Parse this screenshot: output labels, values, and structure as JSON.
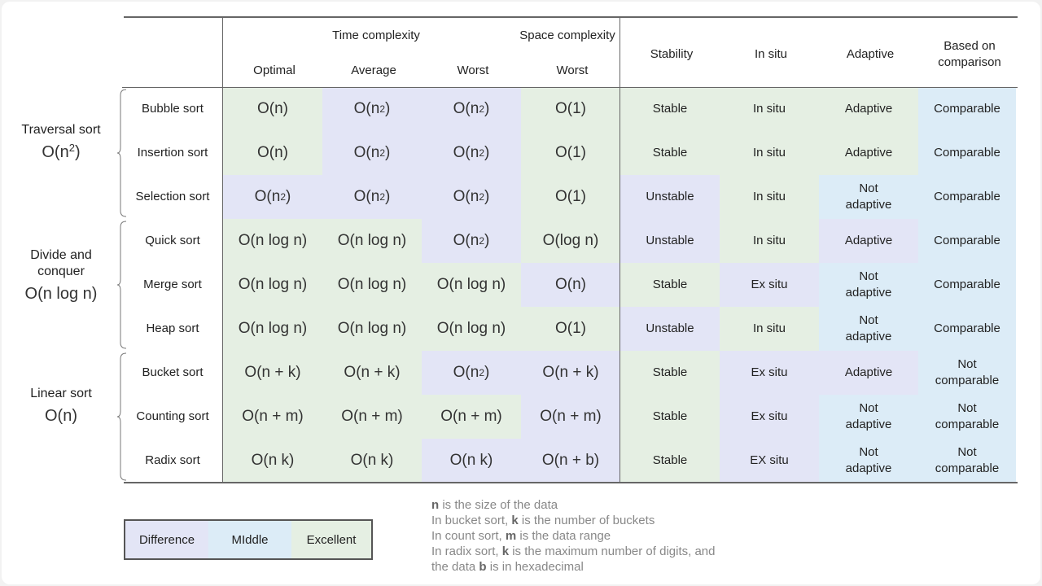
{
  "colors": {
    "Difference": "#e3e5f6",
    "Middle": "#dcecf7",
    "Excellent": "#e5efe3"
  },
  "header": {
    "time_complexity": "Time complexity",
    "space_complexity": "Space complexity",
    "optimal": "Optimal",
    "average": "Average",
    "worst": "Worst",
    "space_worst": "Worst",
    "stability": "Stability",
    "in_situ": "In situ",
    "adaptive": "Adaptive",
    "based_on_comparison": "Based on comparison"
  },
  "groups": [
    {
      "name": "Traversal sort",
      "complexity": "O(n<sup>2</sup>)"
    },
    {
      "name": "Divide and conquer",
      "complexity": "O(n log n)"
    },
    {
      "name": "Linear sort",
      "complexity": "O(n)"
    }
  ],
  "rows": [
    {
      "name": "Bubble sort",
      "cells": [
        {
          "text": "O(n)",
          "c": "Excellent"
        },
        {
          "text": "O(n<sup>2</sup>)",
          "c": "Difference"
        },
        {
          "text": "O(n<sup>2</sup>)",
          "c": "Difference"
        },
        {
          "text": "O(1)",
          "c": "Excellent"
        },
        {
          "text": "Stable",
          "c": "Excellent"
        },
        {
          "text": "In situ",
          "c": "Excellent"
        },
        {
          "text": "Adaptive",
          "c": "Excellent"
        },
        {
          "text": "Comparable",
          "c": "Middle"
        }
      ]
    },
    {
      "name": "Insertion sort",
      "cells": [
        {
          "text": "O(n)",
          "c": "Excellent"
        },
        {
          "text": "O(n<sup>2</sup>)",
          "c": "Difference"
        },
        {
          "text": "O(n<sup>2</sup>)",
          "c": "Difference"
        },
        {
          "text": "O(1)",
          "c": "Excellent"
        },
        {
          "text": "Stable",
          "c": "Excellent"
        },
        {
          "text": "In situ",
          "c": "Excellent"
        },
        {
          "text": "Adaptive",
          "c": "Excellent"
        },
        {
          "text": "Comparable",
          "c": "Middle"
        }
      ]
    },
    {
      "name": "Selection sort",
      "cells": [
        {
          "text": "O(n<sup>2</sup>)",
          "c": "Difference"
        },
        {
          "text": "O(n<sup>2</sup>)",
          "c": "Difference"
        },
        {
          "text": "O(n<sup>2</sup>)",
          "c": "Difference"
        },
        {
          "text": "O(1)",
          "c": "Excellent"
        },
        {
          "text": "Unstable",
          "c": "Difference"
        },
        {
          "text": "In situ",
          "c": "Excellent"
        },
        {
          "text": "Not adaptive",
          "c": "Middle"
        },
        {
          "text": "Comparable",
          "c": "Middle"
        }
      ]
    },
    {
      "name": "Quick sort",
      "cells": [
        {
          "text": "O(n log n)",
          "c": "Excellent"
        },
        {
          "text": "O(n log n)",
          "c": "Excellent"
        },
        {
          "text": "O(n<sup>2</sup>)",
          "c": "Difference"
        },
        {
          "text": "O(log n)",
          "c": "Excellent"
        },
        {
          "text": "Unstable",
          "c": "Difference"
        },
        {
          "text": "In situ",
          "c": "Excellent"
        },
        {
          "text": "Adaptive",
          "c": "Difference"
        },
        {
          "text": "Comparable",
          "c": "Middle"
        }
      ]
    },
    {
      "name": "Merge sort",
      "cells": [
        {
          "text": "O(n log n)",
          "c": "Excellent"
        },
        {
          "text": "O(n log n)",
          "c": "Excellent"
        },
        {
          "text": "O(n log n)",
          "c": "Excellent"
        },
        {
          "text": "O(n)",
          "c": "Difference"
        },
        {
          "text": "Stable",
          "c": "Excellent"
        },
        {
          "text": "Ex situ",
          "c": "Difference"
        },
        {
          "text": "Not adaptive",
          "c": "Middle"
        },
        {
          "text": "Comparable",
          "c": "Middle"
        }
      ]
    },
    {
      "name": "Heap sort",
      "cells": [
        {
          "text": "O(n log n)",
          "c": "Excellent"
        },
        {
          "text": "O(n log n)",
          "c": "Excellent"
        },
        {
          "text": "O(n log n)",
          "c": "Excellent"
        },
        {
          "text": "O(1)",
          "c": "Excellent"
        },
        {
          "text": "Unstable",
          "c": "Difference"
        },
        {
          "text": "In situ",
          "c": "Excellent"
        },
        {
          "text": "Not adaptive",
          "c": "Middle"
        },
        {
          "text": "Comparable",
          "c": "Middle"
        }
      ]
    },
    {
      "name": "Bucket sort",
      "cells": [
        {
          "text": "O(n + k)",
          "c": "Excellent"
        },
        {
          "text": "O(n + k)",
          "c": "Excellent"
        },
        {
          "text": "O(n<sup>2</sup>)",
          "c": "Difference"
        },
        {
          "text": "O(n + k)",
          "c": "Difference"
        },
        {
          "text": "Stable",
          "c": "Excellent"
        },
        {
          "text": "Ex situ",
          "c": "Difference"
        },
        {
          "text": "Adaptive",
          "c": "Difference"
        },
        {
          "text": "Not comparable",
          "c": "Middle"
        }
      ]
    },
    {
      "name": "Counting sort",
      "cells": [
        {
          "text": "O(n + m)",
          "c": "Excellent"
        },
        {
          "text": "O(n + m)",
          "c": "Excellent"
        },
        {
          "text": "O(n + m)",
          "c": "Excellent"
        },
        {
          "text": "O(n + m)",
          "c": "Difference"
        },
        {
          "text": "Stable",
          "c": "Excellent"
        },
        {
          "text": "Ex situ",
          "c": "Difference"
        },
        {
          "text": "Not adaptive",
          "c": "Middle"
        },
        {
          "text": "Not comparable",
          "c": "Middle"
        }
      ]
    },
    {
      "name": "Radix sort",
      "cells": [
        {
          "text": "O(n k)",
          "c": "Excellent"
        },
        {
          "text": "O(n k)",
          "c": "Excellent"
        },
        {
          "text": "O(n k)",
          "c": "Difference"
        },
        {
          "text": "O(n + b)",
          "c": "Difference"
        },
        {
          "text": "Stable",
          "c": "Excellent"
        },
        {
          "text": "EX situ",
          "c": "Difference"
        },
        {
          "text": "Not adaptive",
          "c": "Middle"
        },
        {
          "text": "Not comparable",
          "c": "Middle"
        }
      ]
    }
  ],
  "legend": {
    "difference": "Difference",
    "middle": "MIddle",
    "excellent": "Excellent"
  },
  "notes": [
    "<b>n</b> is the size of the data",
    "In bucket sort, <b>k</b> is the number of buckets",
    "In count sort, <b>m</b> is the data range",
    "In radix sort, <b>k</b> is the maximum number of digits, and",
    "the data <b>b</b> is in hexadecimal"
  ]
}
